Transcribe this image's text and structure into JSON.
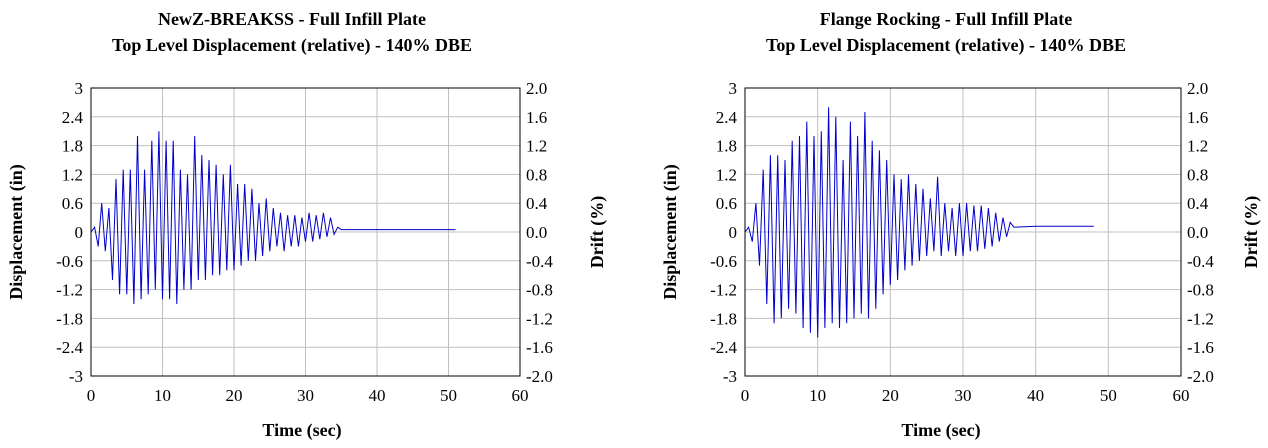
{
  "chart_data": [
    {
      "type": "line",
      "title": "NewZ-BREAKSS - Full Infill Plate",
      "subtitle": "Top Level Displacement (relative) - 140% DBE",
      "xlabel": "Time (sec)",
      "ylabel": "Displacement (in)",
      "y2label": "Drift (%)",
      "xlim": [
        0,
        60
      ],
      "ylim": [
        -3,
        3
      ],
      "y2lim": [
        -2.0,
        2.0
      ],
      "xticks": [
        "0",
        "10",
        "20",
        "30",
        "40",
        "50",
        "60"
      ],
      "yticks": [
        "3",
        "2.4",
        "1.8",
        "1.2",
        "0.6",
        "0",
        "-0.6",
        "-1.2",
        "-1.8",
        "-2.4",
        "-3"
      ],
      "y2ticks": [
        "2.0",
        "1.6",
        "1.2",
        "0.8",
        "0.4",
        "0.0",
        "-0.4",
        "-0.8",
        "-1.2",
        "-1.6",
        "-2.0"
      ],
      "grid": true,
      "color": "#0000cc",
      "series": [
        {
          "x": [
            0,
            0.5,
            1,
            1.5,
            2,
            2.5,
            3,
            3.5,
            4,
            4.5,
            5,
            5.5,
            6,
            6.5,
            7,
            7.5,
            8,
            8.5,
            9,
            9.5,
            10,
            10.5,
            11,
            11.5,
            12,
            12.5,
            13,
            13.5,
            14,
            14.5,
            15,
            15.5,
            16,
            16.5,
            17,
            17.5,
            18,
            18.5,
            19,
            19.5,
            20,
            20.5,
            21,
            21.5,
            22,
            22.5,
            23,
            23.5,
            24,
            24.5,
            25,
            25.5,
            26,
            26.5,
            27,
            27.5,
            28,
            28.5,
            29,
            29.5,
            30,
            30.5,
            31,
            31.5,
            32,
            32.5,
            33,
            33.5,
            34,
            34.5,
            35,
            36,
            40,
            45,
            51
          ],
          "y": [
            0,
            0.1,
            -0.3,
            0.6,
            -0.4,
            0.5,
            -1.0,
            1.1,
            -1.3,
            1.3,
            -1.3,
            1.3,
            -1.5,
            2.0,
            -1.4,
            1.3,
            -1.3,
            1.9,
            -1.2,
            2.1,
            -1.4,
            1.9,
            -1.4,
            1.9,
            -1.5,
            1.3,
            -1.2,
            1.2,
            -1.2,
            2.0,
            -1.0,
            1.6,
            -1.0,
            1.5,
            -0.9,
            1.4,
            -0.9,
            1.2,
            -0.8,
            1.4,
            -0.8,
            1.0,
            -0.7,
            1.0,
            -0.6,
            0.9,
            -0.6,
            0.6,
            -0.5,
            0.7,
            -0.4,
            0.5,
            -0.3,
            0.4,
            -0.4,
            0.35,
            -0.3,
            0.35,
            -0.3,
            0.3,
            -0.2,
            0.4,
            -0.2,
            0.35,
            -0.15,
            0.4,
            -0.1,
            0.3,
            -0.05,
            0.1,
            0.05,
            0.05,
            0.05,
            0.05,
            0.05
          ]
        }
      ]
    },
    {
      "type": "line",
      "title": "Flange Rocking - Full Infill Plate",
      "subtitle": "Top Level Displacement (relative) - 140% DBE",
      "xlabel": "Time (sec)",
      "ylabel": "Displacement (in)",
      "y2label": "Drift (%)",
      "xlim": [
        0,
        60
      ],
      "ylim": [
        -3,
        3
      ],
      "y2lim": [
        -2.0,
        2.0
      ],
      "xticks": [
        "0",
        "10",
        "20",
        "30",
        "40",
        "50",
        "60"
      ],
      "yticks": [
        "3",
        "2.4",
        "1.8",
        "1.2",
        "0.6",
        "0",
        "-0.6",
        "-1.2",
        "-1.8",
        "-2.4",
        "-3"
      ],
      "y2ticks": [
        "2.0",
        "1.6",
        "1.2",
        "0.8",
        "0.4",
        "0.0",
        "-0.4",
        "-0.8",
        "-1.2",
        "-1.6",
        "-2.0"
      ],
      "grid": true,
      "color": "#0000cc",
      "series": [
        {
          "x": [
            0,
            0.5,
            1,
            1.5,
            2,
            2.5,
            3,
            3.5,
            4,
            4.5,
            5,
            5.5,
            6,
            6.5,
            7,
            7.5,
            8,
            8.5,
            9,
            9.5,
            10,
            10.5,
            11,
            11.5,
            12,
            12.5,
            13,
            13.5,
            14,
            14.5,
            15,
            15.5,
            16,
            16.5,
            17,
            17.5,
            18,
            18.5,
            19,
            19.5,
            20,
            20.5,
            21,
            21.5,
            22,
            22.5,
            23,
            23.5,
            24,
            24.5,
            25,
            25.5,
            26,
            26.5,
            27,
            27.5,
            28,
            28.5,
            29,
            29.5,
            30,
            30.5,
            31,
            31.5,
            32,
            32.5,
            33,
            33.5,
            34,
            34.5,
            35,
            35.5,
            36,
            36.5,
            37,
            40,
            45,
            48
          ],
          "y": [
            0,
            0.1,
            -0.2,
            0.6,
            -0.7,
            1.3,
            -1.5,
            1.6,
            -1.9,
            1.6,
            -1.8,
            1.5,
            -1.6,
            1.9,
            -1.7,
            2.0,
            -2.0,
            2.3,
            -2.1,
            2.0,
            -2.2,
            2.1,
            -2.0,
            2.6,
            -1.9,
            2.4,
            -2.0,
            1.5,
            -1.9,
            2.3,
            -1.8,
            2.0,
            -1.7,
            2.5,
            -1.8,
            1.9,
            -1.6,
            1.7,
            -1.3,
            1.5,
            -1.1,
            1.2,
            -1.0,
            1.1,
            -0.8,
            1.2,
            -0.7,
            1.0,
            -0.6,
            0.9,
            -0.5,
            0.7,
            -0.4,
            1.15,
            -0.5,
            0.6,
            -0.4,
            0.5,
            -0.5,
            0.6,
            -0.5,
            0.6,
            -0.4,
            0.55,
            -0.4,
            0.55,
            -0.35,
            0.5,
            -0.3,
            0.4,
            -0.2,
            0.3,
            -0.1,
            0.2,
            0.1,
            0.12,
            0.12,
            0.12
          ]
        }
      ]
    }
  ]
}
